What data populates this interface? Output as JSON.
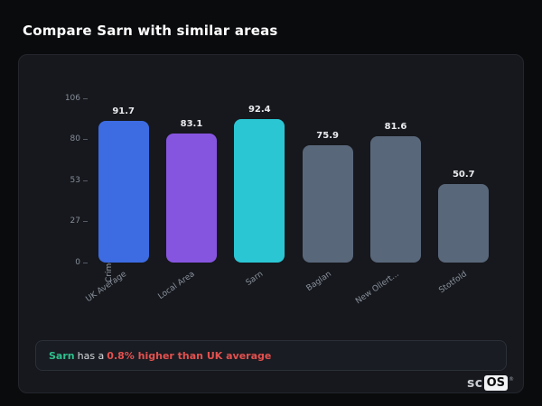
{
  "page": {
    "title": "Compare Sarn with similar areas"
  },
  "chart_data": {
    "type": "bar",
    "title": "",
    "xlabel": "",
    "ylabel": "Crimes per 1,000",
    "ylim": [
      0,
      106
    ],
    "yticks": [
      0,
      27,
      53,
      80,
      106
    ],
    "grid": false,
    "legend": false,
    "categories": [
      "UK Average",
      "Local Area",
      "Sarn",
      "Baglan",
      "New Ollert...",
      "Stotfold"
    ],
    "values": [
      91.7,
      83.1,
      92.4,
      75.9,
      81.6,
      50.7
    ],
    "bar_colors": [
      "#3d6be2",
      "#8655e0",
      "#2bc6d4",
      "#59677a",
      "#59677a",
      "#59677a"
    ],
    "value_label_color": "#e9ebee",
    "axis_text_color": "#868d98"
  },
  "footer_note": {
    "area": "Sarn",
    "middle": "has a",
    "highlight": "0.8% higher than UK average",
    "area_color": "#2ec08d",
    "highlight_color": "#e4504e"
  },
  "branding": {
    "prefix": "sc",
    "boxed": "OS",
    "registered": "®"
  }
}
